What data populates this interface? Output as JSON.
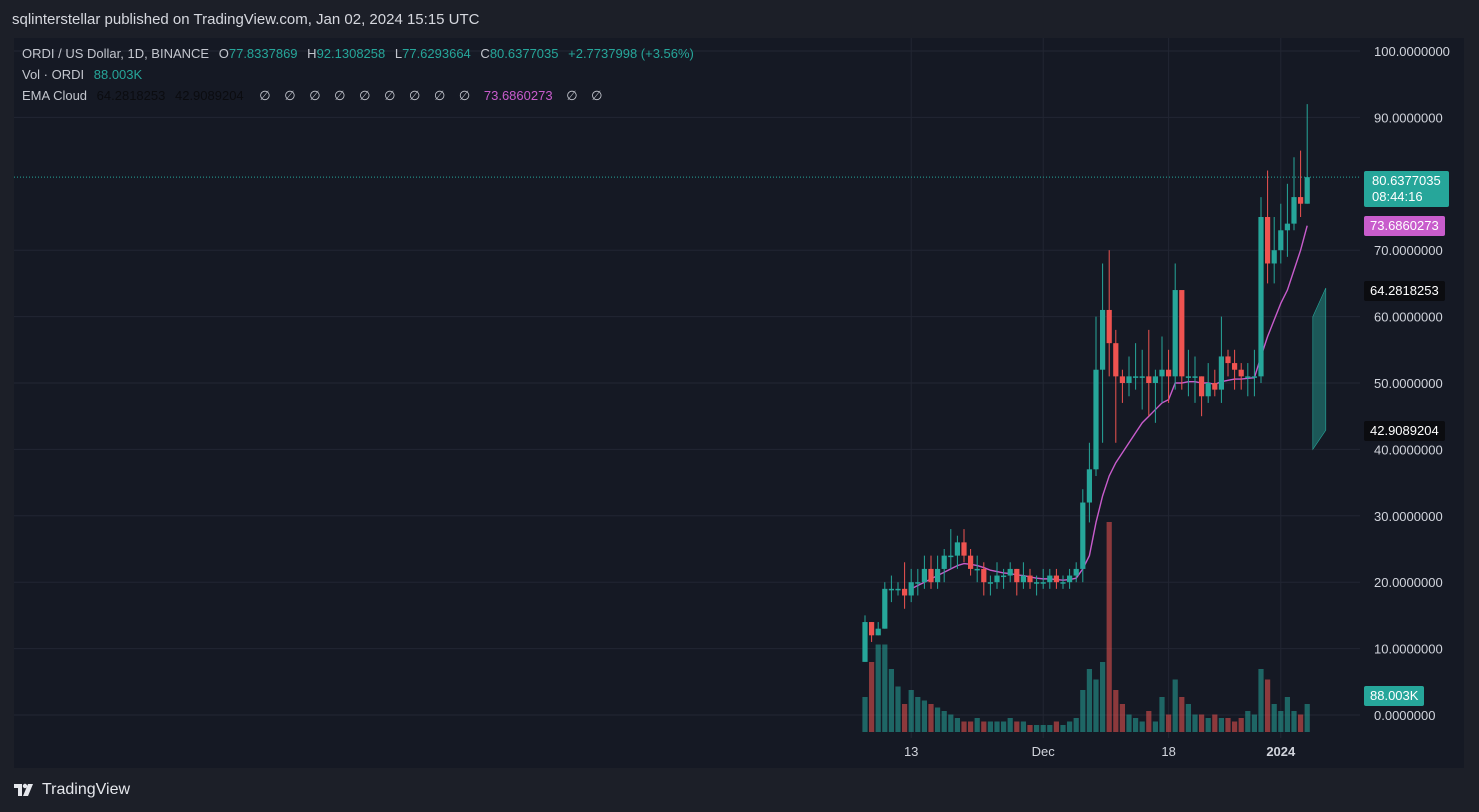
{
  "header": {
    "published_text": "sqlinterstellar published on TradingView.com, Jan 02, 2024 15:15 UTC"
  },
  "legend": {
    "symbol": "ORDI / US Dollar, 1D, BINANCE",
    "open_label": "O",
    "open": "77.8337869",
    "high_label": "H",
    "high": "92.1308258",
    "low_label": "L",
    "low": "77.6293664",
    "close_label": "C",
    "close": "80.6377035",
    "change": "+2.7737998 (+3.56%)",
    "vol_label": "Vol · ORDI",
    "vol_value": "88.003K",
    "ema_label": "EMA Cloud",
    "ema_v1": "64.2818253",
    "ema_v2": "42.9089204",
    "ema_v3": "73.6860273",
    "empty_symbol": "∅"
  },
  "price_axis": {
    "ticks": [
      "100.0000000",
      "90.0000000",
      "70.0000000",
      "60.0000000",
      "50.0000000",
      "40.0000000",
      "30.0000000",
      "20.0000000",
      "10.0000000",
      "0.0000000"
    ],
    "tick_values": [
      100,
      90,
      70,
      60,
      50,
      40,
      30,
      20,
      10,
      0
    ]
  },
  "tags": {
    "last_price": "80.6377035",
    "countdown": "08:44:16",
    "ema_fast": "73.6860273",
    "ema_a": "64.2818253",
    "ema_b": "42.9089204",
    "volume": "88.003K"
  },
  "time_axis": {
    "labels": [
      "13",
      "Dec",
      "18",
      "2024"
    ]
  },
  "footer": {
    "brand": "TradingView"
  },
  "colors": {
    "up": "#26a69a",
    "down": "#ef5350",
    "ema": "#c85ccc",
    "bg": "#151924"
  },
  "chart_data": {
    "type": "candlestick",
    "title": "ORDI / US Dollar, 1D, BINANCE",
    "ylim": [
      0,
      100
    ],
    "x_ticks": [
      "13",
      "Dec",
      "18",
      "2024"
    ],
    "candles": [
      [
        8,
        14,
        15,
        8
      ],
      [
        14,
        12,
        14,
        11
      ],
      [
        12,
        13,
        14,
        12
      ],
      [
        13,
        19,
        20,
        13
      ],
      [
        19,
        19,
        21,
        17
      ],
      [
        19,
        19,
        20,
        18
      ],
      [
        19,
        18,
        23,
        16
      ],
      [
        18,
        20,
        22,
        17
      ],
      [
        20,
        20,
        22,
        18
      ],
      [
        20,
        22,
        24,
        19
      ],
      [
        22,
        20,
        24,
        19
      ],
      [
        20,
        22,
        24,
        19
      ],
      [
        22,
        24,
        25,
        20
      ],
      [
        24,
        24,
        28,
        22
      ],
      [
        24,
        26,
        27,
        22
      ],
      [
        26,
        24,
        28,
        23
      ],
      [
        24,
        22,
        25,
        21
      ],
      [
        22,
        22,
        24,
        20
      ],
      [
        22,
        20,
        23,
        18
      ],
      [
        20,
        20,
        21,
        18
      ],
      [
        20,
        21,
        23,
        19
      ],
      [
        21,
        21,
        22,
        19
      ],
      [
        21,
        22,
        23,
        20
      ],
      [
        22,
        20,
        22,
        18
      ],
      [
        20,
        21,
        23,
        19
      ],
      [
        21,
        20,
        22,
        19
      ],
      [
        20,
        20,
        21,
        18
      ],
      [
        20,
        20,
        22,
        19
      ],
      [
        20,
        21,
        22,
        19
      ],
      [
        21,
        20,
        22,
        19
      ],
      [
        20,
        20,
        21,
        19
      ],
      [
        20,
        21,
        22,
        19
      ],
      [
        21,
        22,
        23,
        20
      ],
      [
        22,
        32,
        34,
        20
      ],
      [
        32,
        37,
        41,
        29
      ],
      [
        37,
        52,
        60,
        36
      ],
      [
        52,
        61,
        68,
        41
      ],
      [
        61,
        56,
        70,
        51
      ],
      [
        56,
        51,
        58,
        41
      ],
      [
        51,
        50,
        52,
        47
      ],
      [
        50,
        51,
        54,
        48
      ],
      [
        51,
        51,
        56,
        49
      ],
      [
        51,
        51,
        55,
        46
      ],
      [
        51,
        50,
        58,
        45
      ],
      [
        50,
        51,
        52,
        44
      ],
      [
        51,
        52,
        57,
        47
      ],
      [
        52,
        51,
        55,
        47
      ],
      [
        51,
        64,
        68,
        49
      ],
      [
        64,
        51,
        62,
        49
      ],
      [
        51,
        51,
        55,
        48
      ],
      [
        51,
        51,
        54,
        47
      ],
      [
        51,
        48,
        51,
        45
      ],
      [
        48,
        50,
        53,
        47
      ],
      [
        50,
        49,
        52,
        48
      ],
      [
        49,
        54,
        60,
        47
      ],
      [
        54,
        53,
        55,
        51
      ],
      [
        53,
        52,
        55,
        49
      ],
      [
        52,
        51,
        53,
        49
      ],
      [
        51,
        51,
        53,
        48
      ],
      [
        51,
        51,
        55,
        48
      ],
      [
        51,
        75,
        78,
        50
      ],
      [
        75,
        68,
        82,
        65
      ],
      [
        68,
        70,
        75,
        65
      ],
      [
        70,
        73,
        77,
        68
      ],
      [
        73,
        74,
        80,
        69
      ],
      [
        74,
        78,
        84,
        73
      ],
      [
        78,
        77,
        85,
        75
      ],
      [
        77,
        81,
        92,
        77
      ]
    ],
    "volume_max": 50,
    "volume": [
      10,
      20,
      25,
      25,
      18,
      13,
      8,
      12,
      10,
      9,
      8,
      7,
      6,
      5,
      4,
      3,
      3,
      4,
      3,
      3,
      3,
      3,
      4,
      3,
      3,
      2,
      2,
      2,
      2,
      3,
      2,
      3,
      4,
      12,
      18,
      15,
      20,
      60,
      12,
      8,
      5,
      4,
      3,
      6,
      3,
      10,
      5,
      15,
      10,
      8,
      5,
      5,
      4,
      5,
      4,
      4,
      3,
      4,
      6,
      5,
      18,
      15,
      8,
      6,
      10,
      6,
      5,
      8
    ],
    "ema_line": [
      null,
      null,
      null,
      null,
      null,
      null,
      null,
      19,
      19.5,
      20,
      20.5,
      21,
      21.5,
      22,
      22.5,
      22.8,
      22.7,
      22.5,
      22.2,
      21.8,
      21.6,
      21.4,
      21.3,
      21.1,
      21,
      20.8,
      20.6,
      20.5,
      20.5,
      20.4,
      20.3,
      20.4,
      20.6,
      22,
      24,
      29,
      33,
      36,
      38,
      39.5,
      41,
      42.5,
      44,
      45,
      46,
      47,
      47.5,
      50,
      50,
      50.2,
      50.2,
      50,
      50,
      49.8,
      50.2,
      50.4,
      50.6,
      50.6,
      50.7,
      50.8,
      54,
      57,
      59.5,
      62,
      64,
      67,
      70,
      73.7
    ],
    "cloud_top_start": 60,
    "cloud_top_end": 64.3,
    "cloud_bottom_start": 40,
    "cloud_bottom_end": 42.9
  }
}
